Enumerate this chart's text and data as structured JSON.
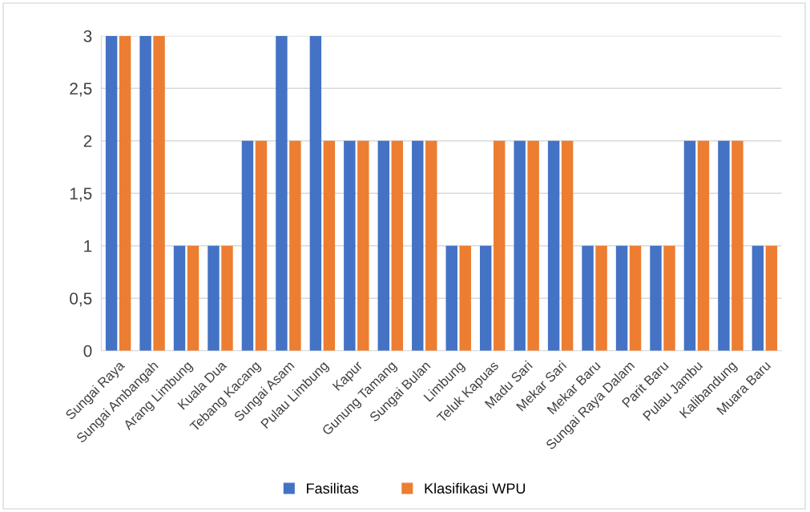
{
  "chart_data": {
    "type": "bar",
    "categories": [
      "Sungai Raya",
      "Sungai Ambangah",
      "Arang Limbung",
      "Kuala Dua",
      "Tebang Kacang",
      "Sungai Asam",
      "Pulau Limbung",
      "Kapur",
      "Gunung Tamang",
      "Sungai Bulan",
      "Limbung",
      "Teluk Kapuas",
      "Madu Sari",
      "Mekar Sari",
      "Mekar Baru",
      "Sungai Raya Dalam",
      "Parit Baru",
      "Pulau Jambu",
      "Kalibandung",
      "Muara Baru"
    ],
    "series": [
      {
        "name": "Fasilitas",
        "color": "#4472c4",
        "values": [
          3,
          3,
          1,
          1,
          2,
          3,
          3,
          2,
          2,
          2,
          1,
          1,
          2,
          2,
          1,
          1,
          1,
          2,
          2,
          1
        ]
      },
      {
        "name": "Klasifikasi WPU",
        "color": "#ed7d31",
        "values": [
          3,
          3,
          1,
          1,
          2,
          2,
          2,
          2,
          2,
          2,
          1,
          2,
          2,
          2,
          1,
          1,
          1,
          2,
          2,
          1
        ]
      }
    ],
    "ylim": [
      0,
      3
    ],
    "yticks": [
      {
        "value": 0,
        "label": "0"
      },
      {
        "value": 0.5,
        "label": "0,5"
      },
      {
        "value": 1,
        "label": "1"
      },
      {
        "value": 1.5,
        "label": "1,5"
      },
      {
        "value": 2,
        "label": "2"
      },
      {
        "value": 2.5,
        "label": "2,5"
      },
      {
        "value": 3,
        "label": "3"
      }
    ],
    "grid": "y",
    "legend": "bottom"
  }
}
